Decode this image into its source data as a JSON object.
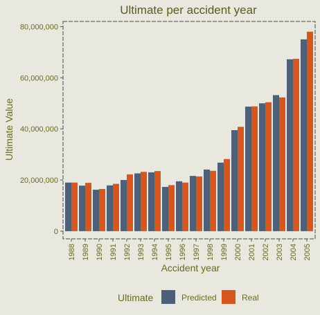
{
  "chart_data": {
    "type": "bar",
    "title": "Ultimate per accident year",
    "xlabel": "Accident year",
    "ylabel": "Ultimate Value",
    "categories": [
      "1988",
      "1989",
      "1990",
      "1991",
      "1992",
      "1993",
      "1994",
      "1995",
      "1996",
      "1997",
      "1998",
      "1999",
      "2000",
      "2001",
      "2002",
      "2003",
      "2004",
      "2005"
    ],
    "series": [
      {
        "name": "Predicted",
        "color": "#4c6179",
        "values": [
          19000000,
          17800000,
          16200000,
          17900000,
          20000000,
          22600000,
          23000000,
          17300000,
          19500000,
          21600000,
          24100000,
          26800000,
          39500000,
          48700000,
          50000000,
          53200000,
          67200000,
          75000000
        ]
      },
      {
        "name": "Real",
        "color": "#d8561c",
        "values": [
          19000000,
          18900000,
          16500000,
          18500000,
          22200000,
          23200000,
          23500000,
          18000000,
          19000000,
          21400000,
          23600000,
          28200000,
          40800000,
          48800000,
          50400000,
          52300000,
          67400000,
          78000000
        ]
      }
    ],
    "yticks": [
      0,
      20000000,
      40000000,
      60000000,
      80000000
    ],
    "ytick_labels": [
      "0",
      "20,000,000",
      "40,000,000",
      "60,000,000",
      "80,000,000"
    ],
    "ylim": [
      -3000000,
      82000000
    ],
    "grid": false,
    "legend": {
      "title": "Ultimate",
      "position": "bottom"
    }
  }
}
